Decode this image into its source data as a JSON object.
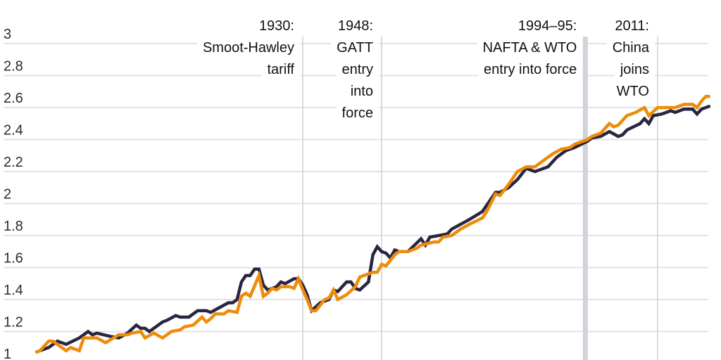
{
  "chart_data": {
    "type": "line",
    "title": "",
    "xlabel": "",
    "ylabel": "",
    "xlim": [
      1869,
      2023
    ],
    "ylim": [
      1,
      3
    ],
    "yticks": [
      "1",
      "1.2",
      "1.4",
      "1.6",
      "1.8",
      "2",
      "2.2",
      "2.4",
      "2.6",
      "2.8",
      "3"
    ],
    "grid": true,
    "legend": "none",
    "series": [
      {
        "color": "#2a2540",
        "points": [
          [
            1869,
            1.07
          ],
          [
            1872,
            1.1
          ],
          [
            1874,
            1.14
          ],
          [
            1876,
            1.12
          ],
          [
            1879,
            1.16
          ],
          [
            1881,
            1.2
          ],
          [
            1882,
            1.18
          ],
          [
            1883,
            1.19
          ],
          [
            1886,
            1.17
          ],
          [
            1888,
            1.16
          ],
          [
            1890,
            1.19
          ],
          [
            1892,
            1.24
          ],
          [
            1893,
            1.22
          ],
          [
            1894,
            1.22
          ],
          [
            1895,
            1.2
          ],
          [
            1898,
            1.26
          ],
          [
            1899,
            1.27
          ],
          [
            1901,
            1.3
          ],
          [
            1902,
            1.29
          ],
          [
            1904,
            1.29
          ],
          [
            1906,
            1.33
          ],
          [
            1908,
            1.33
          ],
          [
            1909,
            1.32
          ],
          [
            1911,
            1.35
          ],
          [
            1913,
            1.38
          ],
          [
            1914,
            1.38
          ],
          [
            1915,
            1.4
          ],
          [
            1916,
            1.51
          ],
          [
            1917,
            1.55
          ],
          [
            1918,
            1.55
          ],
          [
            1919,
            1.59
          ],
          [
            1920,
            1.59
          ],
          [
            1921,
            1.49
          ],
          [
            1922,
            1.46
          ],
          [
            1924,
            1.48
          ],
          [
            1925,
            1.51
          ],
          [
            1926,
            1.5
          ],
          [
            1928,
            1.53
          ],
          [
            1929,
            1.53
          ],
          [
            1930,
            1.49
          ],
          [
            1931,
            1.43
          ],
          [
            1932,
            1.33
          ],
          [
            1934,
            1.38
          ],
          [
            1936,
            1.4
          ],
          [
            1937,
            1.46
          ],
          [
            1938,
            1.45
          ],
          [
            1940,
            1.51
          ],
          [
            1941,
            1.51
          ],
          [
            1942,
            1.47
          ],
          [
            1943,
            1.46
          ],
          [
            1945,
            1.51
          ],
          [
            1946,
            1.68
          ],
          [
            1947,
            1.73
          ],
          [
            1948,
            1.7
          ],
          [
            1949,
            1.69
          ],
          [
            1950,
            1.66
          ],
          [
            1951,
            1.71
          ],
          [
            1952,
            1.7
          ],
          [
            1954,
            1.7
          ],
          [
            1957,
            1.78
          ],
          [
            1958,
            1.74
          ],
          [
            1959,
            1.79
          ],
          [
            1963,
            1.81
          ],
          [
            1964,
            1.84
          ],
          [
            1968,
            1.9
          ],
          [
            1971,
            1.95
          ],
          [
            1972,
            1.99
          ],
          [
            1974,
            2.07
          ],
          [
            1975,
            2.07
          ],
          [
            1977,
            2.1
          ],
          [
            1979,
            2.15
          ],
          [
            1981,
            2.22
          ],
          [
            1983,
            2.2
          ],
          [
            1984,
            2.21
          ],
          [
            1986,
            2.23
          ],
          [
            1988,
            2.29
          ],
          [
            1990,
            2.33
          ],
          [
            1992,
            2.35
          ],
          [
            1995,
            2.39
          ],
          [
            1996,
            2.41
          ],
          [
            1998,
            2.42
          ],
          [
            2000,
            2.45
          ],
          [
            2002,
            2.42
          ],
          [
            2003,
            2.43
          ],
          [
            2004,
            2.46
          ],
          [
            2007,
            2.5
          ],
          [
            2008,
            2.53
          ],
          [
            2009,
            2.5
          ],
          [
            2010,
            2.55
          ],
          [
            2012,
            2.56
          ],
          [
            2014,
            2.58
          ],
          [
            2015,
            2.57
          ],
          [
            2017,
            2.59
          ],
          [
            2019,
            2.59
          ],
          [
            2020,
            2.56
          ],
          [
            2021,
            2.59
          ],
          [
            2023,
            2.61
          ]
        ]
      },
      {
        "color": "#ee8c0a",
        "points": [
          [
            1869,
            1.07
          ],
          [
            1870,
            1.08
          ],
          [
            1872,
            1.14
          ],
          [
            1873,
            1.14
          ],
          [
            1876,
            1.08
          ],
          [
            1877,
            1.1
          ],
          [
            1879,
            1.08
          ],
          [
            1880,
            1.16
          ],
          [
            1883,
            1.16
          ],
          [
            1885,
            1.13
          ],
          [
            1888,
            1.18
          ],
          [
            1890,
            1.18
          ],
          [
            1891,
            1.19
          ],
          [
            1893,
            1.2
          ],
          [
            1894,
            1.16
          ],
          [
            1896,
            1.19
          ],
          [
            1898,
            1.16
          ],
          [
            1899,
            1.18
          ],
          [
            1900,
            1.2
          ],
          [
            1902,
            1.21
          ],
          [
            1903,
            1.23
          ],
          [
            1905,
            1.24
          ],
          [
            1907,
            1.29
          ],
          [
            1908,
            1.26
          ],
          [
            1909,
            1.28
          ],
          [
            1910,
            1.31
          ],
          [
            1912,
            1.31
          ],
          [
            1913,
            1.33
          ],
          [
            1915,
            1.32
          ],
          [
            1916,
            1.42
          ],
          [
            1917,
            1.44
          ],
          [
            1918,
            1.42
          ],
          [
            1920,
            1.55
          ],
          [
            1921,
            1.42
          ],
          [
            1922,
            1.44
          ],
          [
            1923,
            1.47
          ],
          [
            1924,
            1.46
          ],
          [
            1925,
            1.48
          ],
          [
            1927,
            1.48
          ],
          [
            1928,
            1.47
          ],
          [
            1929,
            1.53
          ],
          [
            1930,
            1.46
          ],
          [
            1931,
            1.4
          ],
          [
            1932,
            1.33
          ],
          [
            1933,
            1.33
          ],
          [
            1935,
            1.4
          ],
          [
            1936,
            1.41
          ],
          [
            1937,
            1.46
          ],
          [
            1938,
            1.4
          ],
          [
            1940,
            1.43
          ],
          [
            1942,
            1.48
          ],
          [
            1943,
            1.54
          ],
          [
            1946,
            1.57
          ],
          [
            1947,
            1.57
          ],
          [
            1948,
            1.62
          ],
          [
            1949,
            1.61
          ],
          [
            1951,
            1.68
          ],
          [
            1952,
            1.7
          ],
          [
            1954,
            1.7
          ],
          [
            1956,
            1.72
          ],
          [
            1957,
            1.74
          ],
          [
            1960,
            1.76
          ],
          [
            1961,
            1.76
          ],
          [
            1962,
            1.79
          ],
          [
            1964,
            1.8
          ],
          [
            1966,
            1.84
          ],
          [
            1968,
            1.87
          ],
          [
            1971,
            1.91
          ],
          [
            1972,
            1.95
          ],
          [
            1974,
            2.06
          ],
          [
            1975,
            2.05
          ],
          [
            1977,
            2.12
          ],
          [
            1979,
            2.2
          ],
          [
            1981,
            2.23
          ],
          [
            1983,
            2.23
          ],
          [
            1985,
            2.27
          ],
          [
            1987,
            2.31
          ],
          [
            1989,
            2.34
          ],
          [
            1991,
            2.35
          ],
          [
            1992,
            2.37
          ],
          [
            1995,
            2.4
          ],
          [
            1996,
            2.42
          ],
          [
            1998,
            2.44
          ],
          [
            2000,
            2.5
          ],
          [
            2001,
            2.48
          ],
          [
            2002,
            2.49
          ],
          [
            2004,
            2.55
          ],
          [
            2006,
            2.57
          ],
          [
            2008,
            2.6
          ],
          [
            2009,
            2.55
          ],
          [
            2011,
            2.6
          ],
          [
            2013,
            2.6
          ],
          [
            2015,
            2.6
          ],
          [
            2017,
            2.62
          ],
          [
            2019,
            2.62
          ],
          [
            2020,
            2.6
          ],
          [
            2021,
            2.64
          ],
          [
            2022,
            2.67
          ],
          [
            2023,
            2.67
          ]
        ]
      }
    ],
    "annotations": [
      {
        "year": 1930,
        "title": "1930:",
        "lines": [
          "Smoot-Hawley",
          "tariff"
        ],
        "band": false
      },
      {
        "year": 1948,
        "title": "1948:",
        "lines": [
          "GATT",
          "entry",
          "into",
          "force"
        ],
        "band": false
      },
      {
        "year": 1994.5,
        "title": "1994–95:",
        "lines": [
          "NAFTA & WTO",
          "entry into force"
        ],
        "band": true
      },
      {
        "year": 2011,
        "title": "2011:",
        "lines": [
          "China",
          "joins",
          "WTO"
        ],
        "band": false
      }
    ]
  }
}
